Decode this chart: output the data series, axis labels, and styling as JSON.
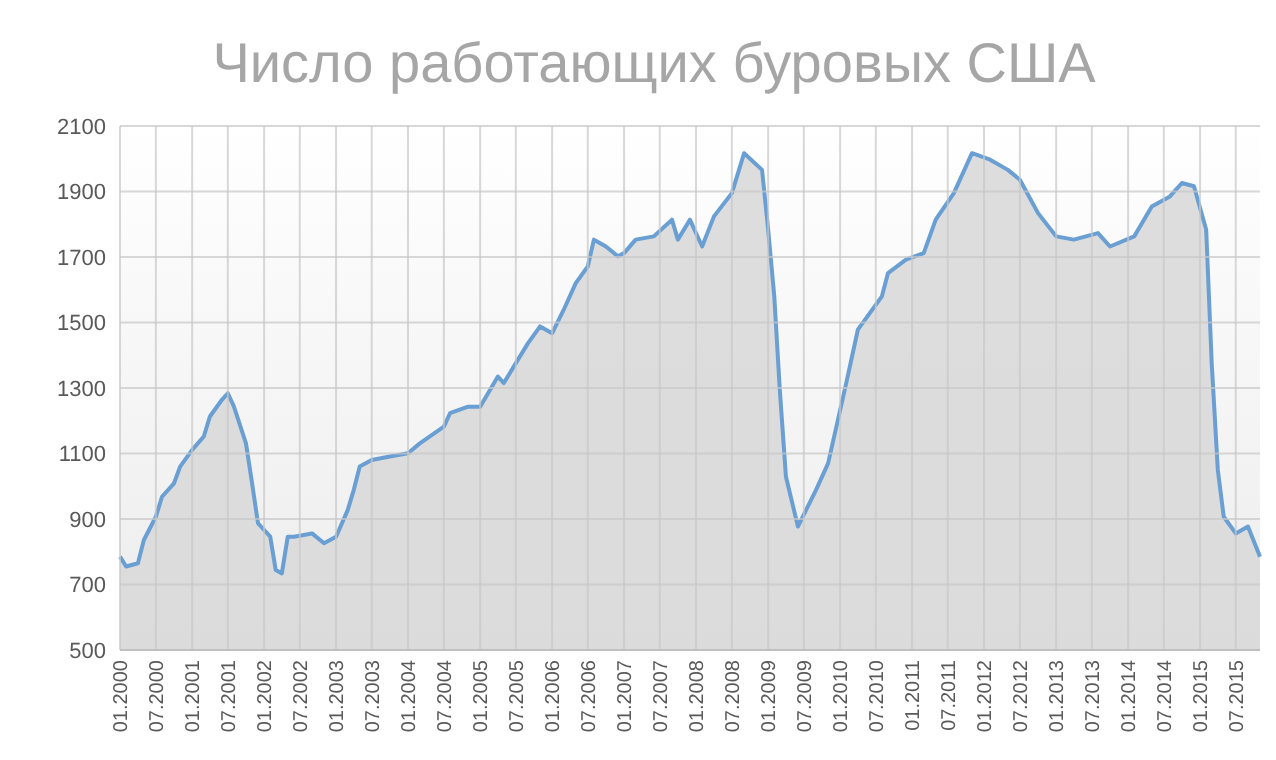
{
  "chart_data": {
    "type": "area",
    "title": "Число работающих буровых США",
    "x": [
      "2000-01",
      "2000-02",
      "2000-04",
      "2000-05",
      "2000-07",
      "2000-08",
      "2000-10",
      "2000-11",
      "2001-01",
      "2001-03",
      "2001-04",
      "2001-06",
      "2001-07",
      "2001-08",
      "2001-10",
      "2001-11",
      "2001-12",
      "2002-02",
      "2002-03",
      "2002-04",
      "2002-05",
      "2002-06",
      "2002-09",
      "2002-11",
      "2003-01",
      "2003-03",
      "2003-04",
      "2003-05",
      "2003-07",
      "2003-10",
      "2004-01",
      "2004-03",
      "2004-07",
      "2004-08",
      "2004-11",
      "2005-01",
      "2005-04",
      "2005-05",
      "2005-07",
      "2005-09",
      "2005-11",
      "2006-01",
      "2006-03",
      "2006-05",
      "2006-07",
      "2006-08",
      "2006-10",
      "2006-12",
      "2007-01",
      "2007-03",
      "2007-06",
      "2007-09",
      "2007-10",
      "2007-12",
      "2008-02",
      "2008-04",
      "2008-07",
      "2008-09",
      "2008-12",
      "2009-01",
      "2009-02",
      "2009-03",
      "2009-04",
      "2009-06",
      "2009-09",
      "2009-11",
      "2010-02",
      "2010-04",
      "2010-08",
      "2010-09",
      "2010-12",
      "2011-03",
      "2011-05",
      "2011-08",
      "2011-11",
      "2012-02",
      "2012-05",
      "2012-07",
      "2012-10",
      "2013-01",
      "2013-04",
      "2013-08",
      "2013-10",
      "2014-02",
      "2014-05",
      "2014-08",
      "2014-10",
      "2014-12",
      "2015-02",
      "2015-03",
      "2015-04",
      "2015-05",
      "2015-07",
      "2015-09",
      "2015-11"
    ],
    "series": [
      {
        "color": "#6a9fd4",
        "values": [
          785,
          755,
          765,
          836,
          907,
          968,
          1009,
          1060,
          1111,
          1152,
          1213,
          1264,
          1284,
          1243,
          1131,
          1009,
          887,
          846,
          744,
          734,
          846,
          846,
          856,
          826,
          846,
          927,
          989,
          1060,
          1080,
          1091,
          1101,
          1131,
          1182,
          1223,
          1243,
          1243,
          1335,
          1315,
          1376,
          1437,
          1488,
          1467,
          1539,
          1620,
          1671,
          1753,
          1732,
          1702,
          1712,
          1753,
          1763,
          1814,
          1753,
          1814,
          1732,
          1824,
          1895,
          2017,
          1966,
          1783,
          1580,
          1295,
          1030,
          877,
          989,
          1070,
          1315,
          1478,
          1580,
          1651,
          1692,
          1712,
          1814,
          1895,
          2017,
          1997,
          1966,
          1936,
          1834,
          1763,
          1753,
          1773,
          1732,
          1763,
          1854,
          1885,
          1926,
          1916,
          1783,
          1376,
          1050,
          907,
          856,
          877,
          785
        ]
      }
    ],
    "xlim": [
      "2000-01",
      "2015-11"
    ],
    "xticks": [
      {
        "value": "2000-01",
        "label": "01.2000"
      },
      {
        "value": "2000-07",
        "label": "07.2000"
      },
      {
        "value": "2001-01",
        "label": "01.2001"
      },
      {
        "value": "2001-07",
        "label": "07.2001"
      },
      {
        "value": "2002-01",
        "label": "01.2002"
      },
      {
        "value": "2002-07",
        "label": "07.2002"
      },
      {
        "value": "2003-01",
        "label": "01.2003"
      },
      {
        "value": "2003-07",
        "label": "07.2003"
      },
      {
        "value": "2004-01",
        "label": "01.2004"
      },
      {
        "value": "2004-07",
        "label": "07.2004"
      },
      {
        "value": "2005-01",
        "label": "01.2005"
      },
      {
        "value": "2005-07",
        "label": "07.2005"
      },
      {
        "value": "2006-01",
        "label": "01.2006"
      },
      {
        "value": "2006-07",
        "label": "07.2006"
      },
      {
        "value": "2007-01",
        "label": "01.2007"
      },
      {
        "value": "2007-07",
        "label": "07.2007"
      },
      {
        "value": "2008-01",
        "label": "01.2008"
      },
      {
        "value": "2008-07",
        "label": "07.2008"
      },
      {
        "value": "2009-01",
        "label": "01.2009"
      },
      {
        "value": "2009-07",
        "label": "07.2009"
      },
      {
        "value": "2010-01",
        "label": "01.2010"
      },
      {
        "value": "2010-07",
        "label": "07.2010"
      },
      {
        "value": "2011-01",
        "label": "01.2011"
      },
      {
        "value": "2011-07",
        "label": "07.2011"
      },
      {
        "value": "2012-01",
        "label": "01.2012"
      },
      {
        "value": "2012-07",
        "label": "07.2012"
      },
      {
        "value": "2013-01",
        "label": "01.2013"
      },
      {
        "value": "2013-07",
        "label": "07.2013"
      },
      {
        "value": "2014-01",
        "label": "01.2014"
      },
      {
        "value": "2014-07",
        "label": "07.2014"
      },
      {
        "value": "2015-01",
        "label": "01.2015"
      },
      {
        "value": "2015-07",
        "label": "07.2015"
      }
    ],
    "ylim": [
      500,
      2100
    ],
    "yticks": [
      500,
      700,
      900,
      1100,
      1300,
      1500,
      1700,
      1900,
      2100
    ],
    "grid": true
  }
}
